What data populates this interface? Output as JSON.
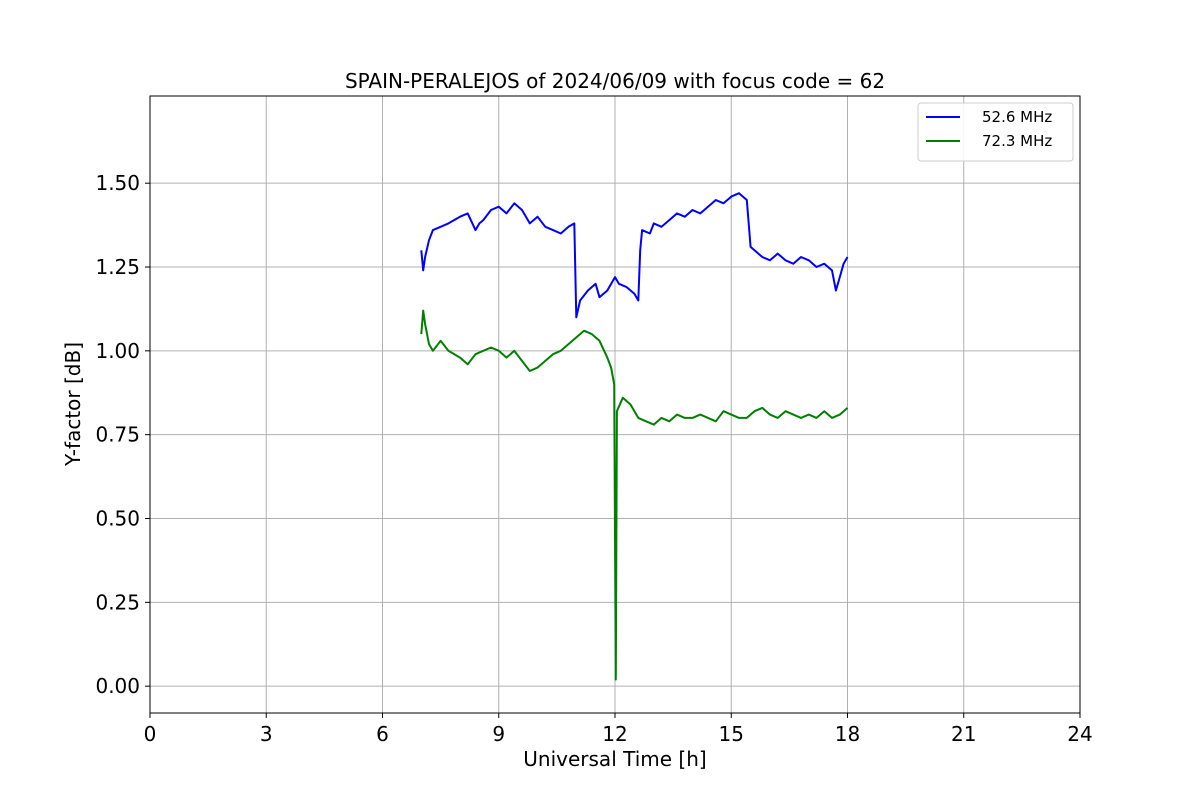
{
  "chart_data": {
    "type": "line",
    "title": "SPAIN-PERALEJOS of 2024/06/09 with focus code = 62",
    "xlabel": "Universal Time [h]",
    "ylabel": "Y-factor [dB]",
    "xlim": [
      0,
      24
    ],
    "ylim": [
      -0.08,
      1.76
    ],
    "xticks": [
      0,
      3,
      6,
      9,
      12,
      15,
      18,
      21,
      24
    ],
    "xtick_labels": [
      "0",
      "3",
      "6",
      "9",
      "12",
      "15",
      "18",
      "21",
      "24"
    ],
    "yticks": [
      0.0,
      0.25,
      0.5,
      0.75,
      1.0,
      1.25,
      1.5
    ],
    "ytick_labels": [
      "0.00",
      "0.25",
      "0.50",
      "0.75",
      "1.00",
      "1.25",
      "1.50"
    ],
    "grid": true,
    "legend_position": "top-right",
    "series": [
      {
        "name": "52.6 MHz",
        "color": "#0000ff",
        "x": [
          7.0,
          7.05,
          7.1,
          7.2,
          7.3,
          7.5,
          7.7,
          8.0,
          8.2,
          8.4,
          8.5,
          8.6,
          8.8,
          9.0,
          9.2,
          9.4,
          9.6,
          9.8,
          10.0,
          10.2,
          10.4,
          10.6,
          10.8,
          10.95,
          11.0,
          11.1,
          11.3,
          11.5,
          11.6,
          11.8,
          12.0,
          12.1,
          12.3,
          12.5,
          12.6,
          12.65,
          12.7,
          12.9,
          13.0,
          13.2,
          13.4,
          13.6,
          13.8,
          14.0,
          14.2,
          14.4,
          14.6,
          14.8,
          15.0,
          15.2,
          15.4,
          15.5,
          15.6,
          15.8,
          16.0,
          16.2,
          16.4,
          16.6,
          16.8,
          17.0,
          17.2,
          17.4,
          17.6,
          17.7,
          17.8,
          17.9,
          18.0
        ],
        "y": [
          1.3,
          1.24,
          1.28,
          1.33,
          1.36,
          1.37,
          1.38,
          1.4,
          1.41,
          1.36,
          1.38,
          1.39,
          1.42,
          1.43,
          1.41,
          1.44,
          1.42,
          1.38,
          1.4,
          1.37,
          1.36,
          1.35,
          1.37,
          1.38,
          1.1,
          1.15,
          1.18,
          1.2,
          1.16,
          1.18,
          1.22,
          1.2,
          1.19,
          1.17,
          1.15,
          1.3,
          1.36,
          1.35,
          1.38,
          1.37,
          1.39,
          1.41,
          1.4,
          1.42,
          1.41,
          1.43,
          1.45,
          1.44,
          1.46,
          1.47,
          1.45,
          1.31,
          1.3,
          1.28,
          1.27,
          1.29,
          1.27,
          1.26,
          1.28,
          1.27,
          1.25,
          1.26,
          1.24,
          1.18,
          1.22,
          1.26,
          1.28
        ]
      },
      {
        "name": "72.3 MHz",
        "color": "#008000",
        "x": [
          7.0,
          7.05,
          7.1,
          7.2,
          7.3,
          7.5,
          7.7,
          8.0,
          8.2,
          8.4,
          8.6,
          8.8,
          9.0,
          9.2,
          9.4,
          9.6,
          9.8,
          10.0,
          10.2,
          10.4,
          10.6,
          10.8,
          11.0,
          11.2,
          11.4,
          11.6,
          11.8,
          11.9,
          11.98,
          12.0,
          12.02,
          12.05,
          12.2,
          12.4,
          12.6,
          12.8,
          13.0,
          13.2,
          13.4,
          13.6,
          13.8,
          14.0,
          14.2,
          14.4,
          14.6,
          14.8,
          15.0,
          15.2,
          15.4,
          15.6,
          15.8,
          16.0,
          16.2,
          16.4,
          16.6,
          16.8,
          17.0,
          17.2,
          17.4,
          17.6,
          17.8,
          18.0
        ],
        "y": [
          1.05,
          1.12,
          1.08,
          1.02,
          1.0,
          1.03,
          1.0,
          0.98,
          0.96,
          0.99,
          1.0,
          1.01,
          1.0,
          0.98,
          1.0,
          0.97,
          0.94,
          0.95,
          0.97,
          0.99,
          1.0,
          1.02,
          1.04,
          1.06,
          1.05,
          1.03,
          0.98,
          0.95,
          0.9,
          0.45,
          0.02,
          0.82,
          0.86,
          0.84,
          0.8,
          0.79,
          0.78,
          0.8,
          0.79,
          0.81,
          0.8,
          0.8,
          0.81,
          0.8,
          0.79,
          0.82,
          0.81,
          0.8,
          0.8,
          0.82,
          0.83,
          0.81,
          0.8,
          0.82,
          0.81,
          0.8,
          0.81,
          0.8,
          0.82,
          0.8,
          0.81,
          0.83
        ]
      }
    ]
  }
}
